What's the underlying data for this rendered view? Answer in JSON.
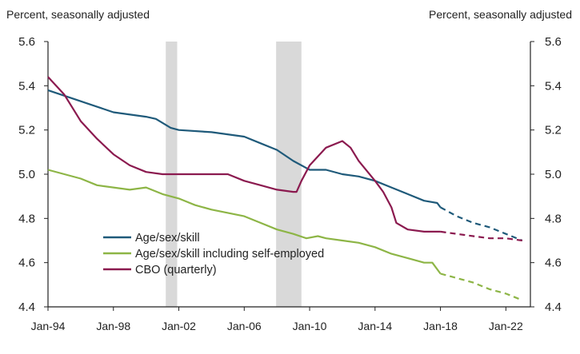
{
  "chart_data": {
    "type": "line",
    "left_axis_label": "Percent, seasonally adjusted",
    "right_axis_label": "Percent, seasonally adjusted",
    "ylim": [
      4.4,
      5.6
    ],
    "yticks": [
      "5.6",
      "5.4",
      "5.2",
      "5.0",
      "4.8",
      "4.6",
      "4.4"
    ],
    "xlim": [
      1994.0,
      2023.5
    ],
    "xticks": [
      {
        "label": "Jan-94",
        "x": 1994.0
      },
      {
        "label": "Jan-98",
        "x": 1998.0
      },
      {
        "label": "Jan-02",
        "x": 2002.0
      },
      {
        "label": "Jan-06",
        "x": 2006.0
      },
      {
        "label": "Jan-10",
        "x": 2010.0
      },
      {
        "label": "Jan-14",
        "x": 2014.0
      },
      {
        "label": "Jan-18",
        "x": 2018.0
      },
      {
        "label": "Jan-22",
        "x": 2022.0
      }
    ],
    "recessions": [
      [
        2001.2,
        2001.9
      ],
      [
        2007.95,
        2009.5
      ]
    ],
    "grid": false,
    "legend_position": "bottom-left",
    "series": [
      {
        "name": "Age/sex/skill",
        "color": "#1f5a7a",
        "points": [
          [
            1994.0,
            5.38
          ],
          [
            1996.0,
            5.33
          ],
          [
            1998.0,
            5.28
          ],
          [
            2000.0,
            5.26
          ],
          [
            2000.6,
            5.25
          ],
          [
            2001.5,
            5.21
          ],
          [
            2002.0,
            5.2
          ],
          [
            2004.0,
            5.19
          ],
          [
            2006.0,
            5.17
          ],
          [
            2007.0,
            5.14
          ],
          [
            2008.0,
            5.11
          ],
          [
            2009.0,
            5.06
          ],
          [
            2010.0,
            5.02
          ],
          [
            2011.0,
            5.02
          ],
          [
            2012.0,
            5.0
          ],
          [
            2013.0,
            4.99
          ],
          [
            2014.0,
            4.97
          ],
          [
            2015.0,
            4.94
          ],
          [
            2016.0,
            4.91
          ],
          [
            2017.0,
            4.88
          ],
          [
            2017.8,
            4.87
          ],
          [
            2018.0,
            4.85
          ]
        ],
        "projection": [
          [
            2018.0,
            4.85
          ],
          [
            2019.0,
            4.81
          ],
          [
            2020.0,
            4.78
          ],
          [
            2021.0,
            4.76
          ],
          [
            2022.0,
            4.73
          ],
          [
            2023.0,
            4.7
          ]
        ]
      },
      {
        "name": "Age/sex/skill including self-employed",
        "color": "#8db546",
        "points": [
          [
            1994.0,
            5.02
          ],
          [
            1996.0,
            4.98
          ],
          [
            1997.0,
            4.95
          ],
          [
            1999.0,
            4.93
          ],
          [
            2000.0,
            4.94
          ],
          [
            2001.0,
            4.91
          ],
          [
            2002.0,
            4.89
          ],
          [
            2003.0,
            4.86
          ],
          [
            2004.0,
            4.84
          ],
          [
            2006.0,
            4.81
          ],
          [
            2007.0,
            4.78
          ],
          [
            2008.0,
            4.75
          ],
          [
            2009.0,
            4.73
          ],
          [
            2009.8,
            4.71
          ],
          [
            2010.5,
            4.72
          ],
          [
            2011.0,
            4.71
          ],
          [
            2012.0,
            4.7
          ],
          [
            2013.0,
            4.69
          ],
          [
            2014.0,
            4.67
          ],
          [
            2015.0,
            4.64
          ],
          [
            2016.0,
            4.62
          ],
          [
            2017.0,
            4.6
          ],
          [
            2017.5,
            4.6
          ],
          [
            2018.0,
            4.55
          ]
        ],
        "projection": [
          [
            2018.0,
            4.55
          ],
          [
            2019.0,
            4.53
          ],
          [
            2020.0,
            4.51
          ],
          [
            2021.0,
            4.48
          ],
          [
            2022.0,
            4.46
          ],
          [
            2023.0,
            4.43
          ]
        ]
      },
      {
        "name": "CBO (quarterly)",
        "color": "#8b1a4f",
        "points": [
          [
            1994.0,
            5.44
          ],
          [
            1995.0,
            5.36
          ],
          [
            1996.0,
            5.24
          ],
          [
            1997.0,
            5.16
          ],
          [
            1998.0,
            5.09
          ],
          [
            1999.0,
            5.04
          ],
          [
            2000.0,
            5.01
          ],
          [
            2001.0,
            5.0
          ],
          [
            2002.0,
            5.0
          ],
          [
            2003.0,
            5.0
          ],
          [
            2004.0,
            5.0
          ],
          [
            2005.0,
            5.0
          ],
          [
            2006.0,
            4.97
          ],
          [
            2007.0,
            4.95
          ],
          [
            2008.0,
            4.93
          ],
          [
            2009.0,
            4.92
          ],
          [
            2009.2,
            4.92
          ],
          [
            2009.5,
            4.97
          ],
          [
            2010.0,
            5.04
          ],
          [
            2011.0,
            5.12
          ],
          [
            2012.0,
            5.15
          ],
          [
            2012.5,
            5.12
          ],
          [
            2013.0,
            5.06
          ],
          [
            2014.0,
            4.97
          ],
          [
            2014.5,
            4.92
          ],
          [
            2015.0,
            4.85
          ],
          [
            2015.3,
            4.78
          ],
          [
            2016.0,
            4.75
          ],
          [
            2017.0,
            4.74
          ],
          [
            2018.0,
            4.74
          ]
        ],
        "projection": [
          [
            2018.0,
            4.74
          ],
          [
            2019.0,
            4.73
          ],
          [
            2020.0,
            4.72
          ],
          [
            2021.0,
            4.71
          ],
          [
            2022.0,
            4.71
          ],
          [
            2023.0,
            4.7
          ]
        ]
      }
    ]
  }
}
